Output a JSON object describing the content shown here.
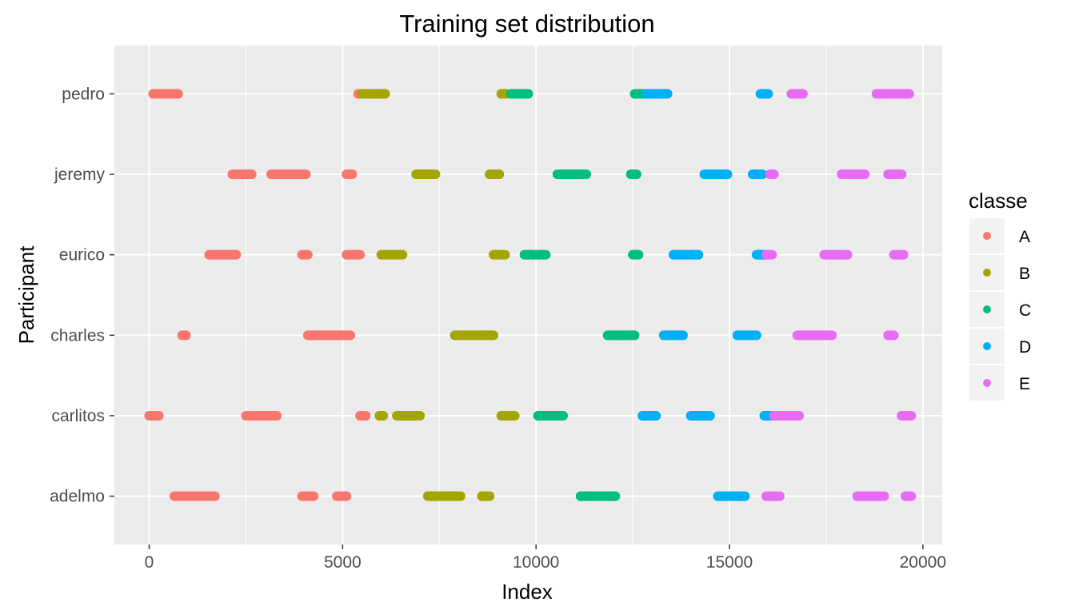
{
  "chart_data": {
    "type": "scatter",
    "title": "Training set distribution",
    "xlabel": "Index",
    "ylabel": "Participant",
    "xlim": [
      -900,
      20500
    ],
    "x_ticks": [
      0,
      5000,
      10000,
      15000,
      20000
    ],
    "x_tick_labels": [
      "0",
      "5000",
      "10000",
      "15000",
      "20000"
    ],
    "categories": [
      "adelmo",
      "carlitos",
      "charles",
      "eurico",
      "jeremy",
      "pedro"
    ],
    "grid": true,
    "legend": {
      "title": "classe",
      "placement": "right"
    },
    "colors": {
      "A": "#F8766D",
      "B": "#A3A500",
      "C": "#00BF7D",
      "D": "#00B0F6",
      "E": "#E76BF3"
    },
    "series": [
      {
        "name": "A",
        "segments": [
          {
            "participant": "pedro",
            "x": [
              100,
              750
            ]
          },
          {
            "participant": "pedro",
            "x": [
              5400,
              5500
            ]
          },
          {
            "participant": "jeremy",
            "x": [
              2150,
              2650
            ]
          },
          {
            "participant": "jeremy",
            "x": [
              3150,
              4050
            ]
          },
          {
            "participant": "jeremy",
            "x": [
              5100,
              5250
            ]
          },
          {
            "participant": "eurico",
            "x": [
              1550,
              2250
            ]
          },
          {
            "participant": "eurico",
            "x": [
              3950,
              4100
            ]
          },
          {
            "participant": "eurico",
            "x": [
              5100,
              5450
            ]
          },
          {
            "participant": "charles",
            "x": [
              850,
              950
            ]
          },
          {
            "participant": "charles",
            "x": [
              4100,
              5200
            ]
          },
          {
            "participant": "carlitos",
            "x": [
              0,
              250
            ]
          },
          {
            "participant": "carlitos",
            "x": [
              2500,
              3300
            ]
          },
          {
            "participant": "carlitos",
            "x": [
              5450,
              5600
            ]
          },
          {
            "participant": "adelmo",
            "x": [
              650,
              1700
            ]
          },
          {
            "participant": "adelmo",
            "x": [
              3950,
              4250
            ]
          },
          {
            "participant": "adelmo",
            "x": [
              4850,
              5100
            ]
          }
        ]
      },
      {
        "name": "B",
        "segments": [
          {
            "participant": "pedro",
            "x": [
              5500,
              6100
            ]
          },
          {
            "participant": "pedro",
            "x": [
              9100,
              9250
            ]
          },
          {
            "participant": "jeremy",
            "x": [
              6900,
              7400
            ]
          },
          {
            "participant": "jeremy",
            "x": [
              8800,
              9050
            ]
          },
          {
            "participant": "eurico",
            "x": [
              6000,
              6550
            ]
          },
          {
            "participant": "eurico",
            "x": [
              8900,
              9200
            ]
          },
          {
            "participant": "charles",
            "x": [
              7900,
              8900
            ]
          },
          {
            "participant": "carlitos",
            "x": [
              5950,
              6050
            ]
          },
          {
            "participant": "carlitos",
            "x": [
              6400,
              7000
            ]
          },
          {
            "participant": "carlitos",
            "x": [
              9100,
              9450
            ]
          },
          {
            "participant": "adelmo",
            "x": [
              7200,
              8050
            ]
          },
          {
            "participant": "adelmo",
            "x": [
              8600,
              8800
            ]
          }
        ]
      },
      {
        "name": "C",
        "segments": [
          {
            "participant": "pedro",
            "x": [
              9350,
              9800
            ]
          },
          {
            "participant": "pedro",
            "x": [
              12550,
              12800
            ]
          },
          {
            "participant": "jeremy",
            "x": [
              10550,
              11300
            ]
          },
          {
            "participant": "jeremy",
            "x": [
              12450,
              12600
            ]
          },
          {
            "participant": "eurico",
            "x": [
              9700,
              10250
            ]
          },
          {
            "participant": "eurico",
            "x": [
              12500,
              12650
            ]
          },
          {
            "participant": "charles",
            "x": [
              11850,
              12550
            ]
          },
          {
            "participant": "carlitos",
            "x": [
              10050,
              10700
            ]
          },
          {
            "participant": "adelmo",
            "x": [
              11150,
              12050
            ]
          }
        ]
      },
      {
        "name": "D",
        "segments": [
          {
            "participant": "pedro",
            "x": [
              12850,
              13400
            ]
          },
          {
            "participant": "pedro",
            "x": [
              15800,
              16000
            ]
          },
          {
            "participant": "jeremy",
            "x": [
              14350,
              14950
            ]
          },
          {
            "participant": "jeremy",
            "x": [
              15600,
              15850
            ]
          },
          {
            "participant": "eurico",
            "x": [
              13550,
              14200
            ]
          },
          {
            "participant": "eurico",
            "x": [
              15700,
              15950
            ]
          },
          {
            "participant": "charles",
            "x": [
              13300,
              13800
            ]
          },
          {
            "participant": "charles",
            "x": [
              15200,
              15700
            ]
          },
          {
            "participant": "carlitos",
            "x": [
              12750,
              13100
            ]
          },
          {
            "participant": "carlitos",
            "x": [
              14000,
              14500
            ]
          },
          {
            "participant": "carlitos",
            "x": [
              15900,
              16150
            ]
          },
          {
            "participant": "adelmo",
            "x": [
              14700,
              15400
            ]
          }
        ]
      },
      {
        "name": "E",
        "segments": [
          {
            "participant": "pedro",
            "x": [
              16600,
              16900
            ]
          },
          {
            "participant": "pedro",
            "x": [
              18800,
              19250
            ]
          },
          {
            "participant": "pedro",
            "x": [
              19350,
              19650
            ]
          },
          {
            "participant": "jeremy",
            "x": [
              16050,
              16150
            ]
          },
          {
            "participant": "jeremy",
            "x": [
              17900,
              18500
            ]
          },
          {
            "participant": "jeremy",
            "x": [
              19100,
              19450
            ]
          },
          {
            "participant": "eurico",
            "x": [
              15950,
              16100
            ]
          },
          {
            "participant": "eurico",
            "x": [
              17450,
              18050
            ]
          },
          {
            "participant": "eurico",
            "x": [
              19250,
              19500
            ]
          },
          {
            "participant": "charles",
            "x": [
              16750,
              17650
            ]
          },
          {
            "participant": "charles",
            "x": [
              19100,
              19250
            ]
          },
          {
            "participant": "carlitos",
            "x": [
              16150,
              16800
            ]
          },
          {
            "participant": "carlitos",
            "x": [
              19450,
              19700
            ]
          },
          {
            "participant": "adelmo",
            "x": [
              15950,
              16300
            ]
          },
          {
            "participant": "adelmo",
            "x": [
              18300,
              19000
            ]
          },
          {
            "participant": "adelmo",
            "x": [
              19550,
              19700
            ]
          }
        ]
      }
    ]
  }
}
